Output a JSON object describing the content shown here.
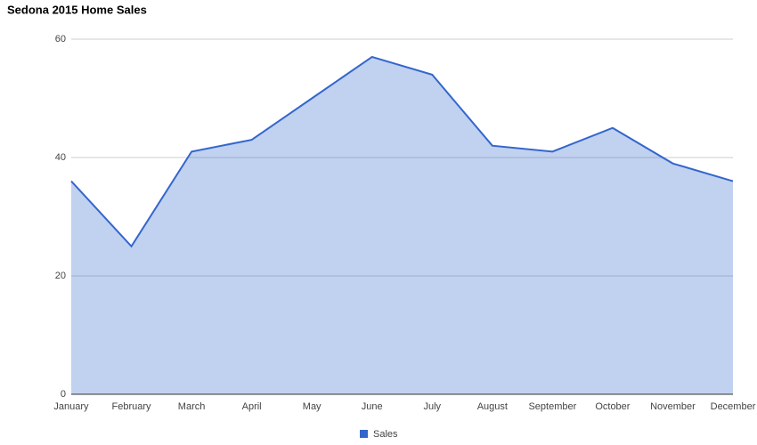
{
  "chart_data": {
    "type": "area",
    "title": "Sedona 2015 Home Sales",
    "categories": [
      "January",
      "February",
      "March",
      "April",
      "May",
      "June",
      "July",
      "August",
      "September",
      "October",
      "November",
      "December"
    ],
    "series": [
      {
        "name": "Sales",
        "color": "#3366cc",
        "values": [
          36,
          25,
          41,
          43,
          50,
          57,
          54,
          42,
          41,
          45,
          39,
          36
        ]
      }
    ],
    "ylim": [
      0,
      60
    ],
    "yticks": [
      0,
      20,
      40,
      60
    ],
    "grid": true,
    "legend": "bottom"
  }
}
